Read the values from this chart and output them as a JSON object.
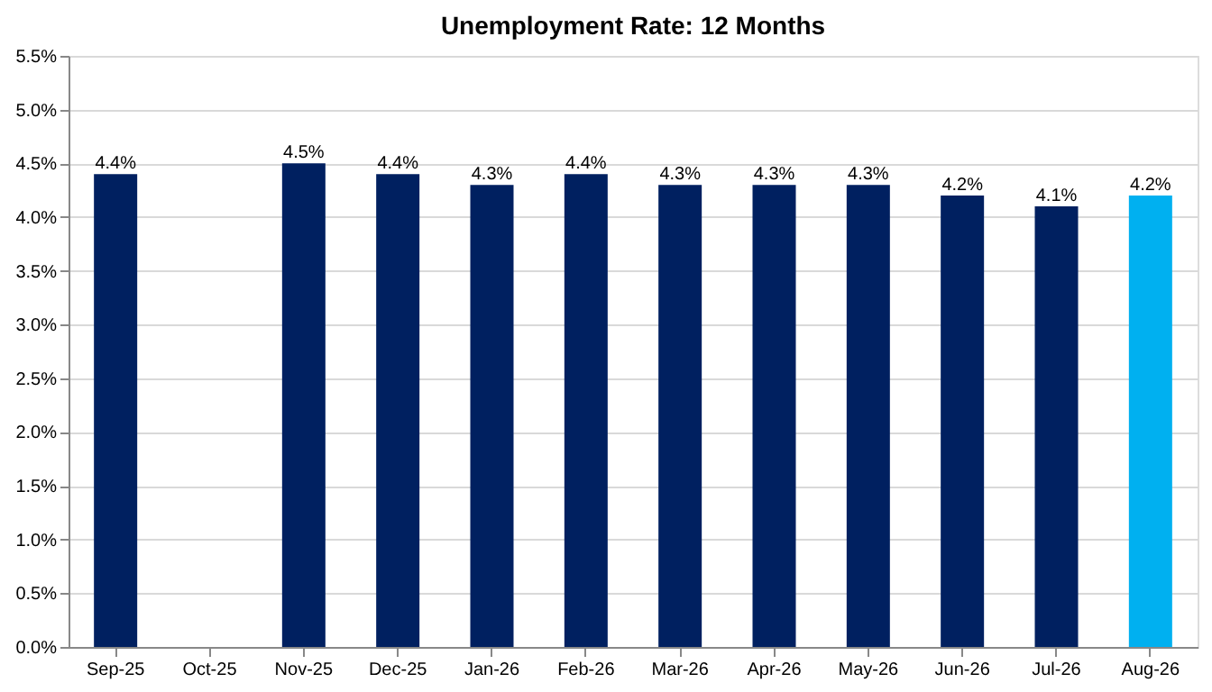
{
  "chart_data": {
    "type": "bar",
    "title": "Unemployment Rate: 12 Months",
    "categories": [
      "Sep-25",
      "Oct-25",
      "Nov-25",
      "Dec-25",
      "Jan-26",
      "Feb-26",
      "Mar-26",
      "Apr-26",
      "May-26",
      "Jun-26",
      "Jul-26",
      "Aug-26"
    ],
    "values": [
      4.4,
      null,
      4.5,
      4.4,
      4.3,
      4.4,
      4.3,
      4.3,
      4.3,
      4.2,
      4.1,
      4.2
    ],
    "value_labels": [
      "4.4%",
      null,
      "4.5%",
      "4.4%",
      "4.3%",
      "4.4%",
      "4.3%",
      "4.3%",
      "4.3%",
      "4.2%",
      "4.1%",
      "4.2%"
    ],
    "colors": [
      "#002060",
      "#002060",
      "#002060",
      "#002060",
      "#002060",
      "#002060",
      "#002060",
      "#002060",
      "#002060",
      "#002060",
      "#002060",
      "#00b0f0"
    ],
    "ylim": [
      0,
      5.5
    ],
    "yticks": [
      {
        "value": 0,
        "label": "0.0%"
      },
      {
        "value": 0.5,
        "label": "0.5%"
      },
      {
        "value": 1,
        "label": "1.0%"
      },
      {
        "value": 1.5,
        "label": "1.5%"
      },
      {
        "value": 2,
        "label": "2.0%"
      },
      {
        "value": 2.5,
        "label": "2.5%"
      },
      {
        "value": 3,
        "label": "3.0%"
      },
      {
        "value": 3.5,
        "label": "3.5%"
      },
      {
        "value": 4,
        "label": "4.0%"
      },
      {
        "value": 4.5,
        "label": "4.5%"
      },
      {
        "value": 5,
        "label": "5.0%"
      },
      {
        "value": 5.5,
        "label": "5.5%"
      }
    ],
    "grid": "y"
  }
}
